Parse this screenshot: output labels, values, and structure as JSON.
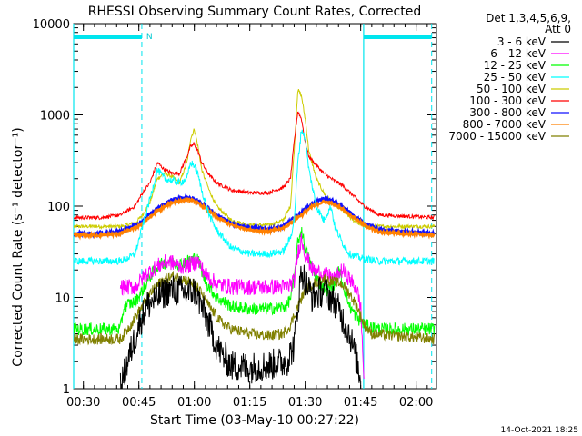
{
  "chart_data": {
    "type": "line",
    "title": "RHESSI Observing Summary Count Rates, Corrected",
    "xlabel": "Start Time (03-May-10 00:27:22)",
    "ylabel": "Corrected Count Rate (s⁻¹ detector⁻¹)",
    "yscale": "log",
    "ylim": [
      1,
      10000
    ],
    "xlim_minutes": [
      27.37,
      125.5
    ],
    "x_ticks": [
      "00:30",
      "00:45",
      "01:00",
      "01:15",
      "01:30",
      "01:45",
      "02:00"
    ],
    "x_tick_minutes": [
      30,
      45,
      60,
      75,
      90,
      105,
      120
    ],
    "y_ticks": [
      "1",
      "10",
      "100",
      "1000",
      "10000"
    ],
    "legend": {
      "header": [
        "Det 1,3,4,5,6,9,",
        "Att 0"
      ],
      "placement": "right"
    },
    "annotations": {
      "night_marker": "N",
      "cyan_bars": [
        [
          27.37,
          45.8
        ],
        [
          105.8,
          124.2
        ]
      ],
      "vertical_dashed_minutes": [
        45.8,
        124.2
      ],
      "vertical_solid_minutes": [
        27.37,
        105.8
      ]
    },
    "series": [
      {
        "name": "3 - 6 keV",
        "color": "#000000",
        "points": [
          [
            40,
            1
          ],
          [
            42,
            2
          ],
          [
            45,
            5
          ],
          [
            47,
            8
          ],
          [
            50,
            10
          ],
          [
            53,
            12
          ],
          [
            56,
            12
          ],
          [
            58,
            11
          ],
          [
            60,
            12
          ],
          [
            62,
            8
          ],
          [
            64,
            5
          ],
          [
            66,
            3
          ],
          [
            68,
            2.2
          ],
          [
            70,
            1.8
          ],
          [
            75,
            1.7
          ],
          [
            80,
            1.8
          ],
          [
            85,
            2
          ],
          [
            87,
            3
          ],
          [
            88,
            8
          ],
          [
            89,
            20
          ],
          [
            90,
            15
          ],
          [
            92,
            10
          ],
          [
            95,
            12
          ],
          [
            98,
            9
          ],
          [
            100,
            6
          ],
          [
            102,
            4
          ],
          [
            104,
            2
          ],
          [
            105,
            1.2
          ]
        ]
      },
      {
        "name": "6 - 12 keV",
        "color": "#ff00ff",
        "points": [
          [
            40,
            13
          ],
          [
            44,
            13
          ],
          [
            47,
            18
          ],
          [
            50,
            22
          ],
          [
            53,
            25
          ],
          [
            56,
            22
          ],
          [
            58,
            22
          ],
          [
            60,
            24
          ],
          [
            61,
            25
          ],
          [
            63,
            18
          ],
          [
            66,
            14
          ],
          [
            70,
            13
          ],
          [
            80,
            13
          ],
          [
            85,
            13
          ],
          [
            87,
            15
          ],
          [
            88,
            30
          ],
          [
            89,
            45
          ],
          [
            90,
            30
          ],
          [
            92,
            20
          ],
          [
            95,
            18
          ],
          [
            98,
            16
          ],
          [
            100,
            20
          ],
          [
            102,
            16
          ],
          [
            104,
            12
          ],
          [
            105,
            8
          ],
          [
            106,
            1
          ]
        ]
      },
      {
        "name": "12 - 25 keV",
        "color": "#00ff00",
        "points": [
          [
            27.37,
            4.5
          ],
          [
            35,
            4.5
          ],
          [
            40,
            4.5
          ],
          [
            41,
            8
          ],
          [
            44,
            9
          ],
          [
            46,
            12
          ],
          [
            48,
            17
          ],
          [
            50,
            22
          ],
          [
            53,
            25
          ],
          [
            56,
            23
          ],
          [
            58,
            25
          ],
          [
            60,
            27
          ],
          [
            61,
            26
          ],
          [
            63,
            15
          ],
          [
            66,
            10
          ],
          [
            70,
            8
          ],
          [
            75,
            7.5
          ],
          [
            80,
            7.5
          ],
          [
            85,
            8
          ],
          [
            86,
            10
          ],
          [
            87,
            15
          ],
          [
            88,
            40
          ],
          [
            89,
            55
          ],
          [
            90,
            35
          ],
          [
            92,
            20
          ],
          [
            94,
            14
          ],
          [
            96,
            12
          ],
          [
            98,
            14
          ],
          [
            99,
            20
          ],
          [
            100,
            15
          ],
          [
            102,
            8
          ],
          [
            104,
            6
          ],
          [
            106,
            5
          ],
          [
            110,
            4.5
          ],
          [
            125,
            4.5
          ]
        ]
      },
      {
        "name": "25 - 50 keV",
        "color": "#00ffff",
        "points": [
          [
            27.37,
            25
          ],
          [
            35,
            25
          ],
          [
            40,
            25
          ],
          [
            42,
            27
          ],
          [
            44,
            30
          ],
          [
            46,
            60
          ],
          [
            48,
            120
          ],
          [
            50,
            250
          ],
          [
            52,
            200
          ],
          [
            54,
            190
          ],
          [
            56,
            180
          ],
          [
            58,
            200
          ],
          [
            59,
            300
          ],
          [
            60,
            280
          ],
          [
            61,
            220
          ],
          [
            62,
            150
          ],
          [
            64,
            80
          ],
          [
            66,
            55
          ],
          [
            70,
            35
          ],
          [
            75,
            30
          ],
          [
            80,
            30
          ],
          [
            84,
            32
          ],
          [
            86,
            45
          ],
          [
            87,
            70
          ],
          [
            88,
            300
          ],
          [
            89,
            700
          ],
          [
            90,
            550
          ],
          [
            91,
            250
          ],
          [
            93,
            100
          ],
          [
            95,
            70
          ],
          [
            97,
            100
          ],
          [
            98,
            60
          ],
          [
            100,
            40
          ],
          [
            102,
            30
          ],
          [
            105,
            27
          ],
          [
            110,
            25
          ],
          [
            125,
            25
          ]
        ]
      },
      {
        "name": "50 - 100 keV",
        "color": "#cccc00",
        "points": [
          [
            27.37,
            60
          ],
          [
            35,
            60
          ],
          [
            40,
            60
          ],
          [
            44,
            65
          ],
          [
            46,
            80
          ],
          [
            48,
            110
          ],
          [
            50,
            200
          ],
          [
            52,
            230
          ],
          [
            54,
            210
          ],
          [
            56,
            180
          ],
          [
            58,
            300
          ],
          [
            59,
            550
          ],
          [
            60,
            700
          ],
          [
            61,
            450
          ],
          [
            62,
            250
          ],
          [
            64,
            150
          ],
          [
            66,
            100
          ],
          [
            70,
            70
          ],
          [
            75,
            62
          ],
          [
            80,
            62
          ],
          [
            84,
            70
          ],
          [
            86,
            100
          ],
          [
            87,
            400
          ],
          [
            88,
            1900
          ],
          [
            89,
            1600
          ],
          [
            90,
            900
          ],
          [
            91,
            400
          ],
          [
            93,
            200
          ],
          [
            95,
            140
          ],
          [
            97,
            110
          ],
          [
            100,
            90
          ],
          [
            103,
            70
          ],
          [
            106,
            60
          ],
          [
            110,
            60
          ],
          [
            125,
            60
          ]
        ]
      },
      {
        "name": "100 - 300 keV",
        "color": "#ff0000",
        "points": [
          [
            27.37,
            75
          ],
          [
            35,
            75
          ],
          [
            40,
            80
          ],
          [
            44,
            100
          ],
          [
            46,
            140
          ],
          [
            48,
            180
          ],
          [
            50,
            300
          ],
          [
            52,
            250
          ],
          [
            54,
            230
          ],
          [
            56,
            230
          ],
          [
            58,
            350
          ],
          [
            59,
            450
          ],
          [
            60,
            480
          ],
          [
            61,
            400
          ],
          [
            62,
            300
          ],
          [
            64,
            220
          ],
          [
            66,
            180
          ],
          [
            70,
            150
          ],
          [
            75,
            140
          ],
          [
            80,
            140
          ],
          [
            84,
            160
          ],
          [
            86,
            200
          ],
          [
            87,
            500
          ],
          [
            88,
            1100
          ],
          [
            89,
            900
          ],
          [
            90,
            500
          ],
          [
            91,
            350
          ],
          [
            93,
            280
          ],
          [
            95,
            230
          ],
          [
            97,
            200
          ],
          [
            100,
            170
          ],
          [
            103,
            130
          ],
          [
            106,
            100
          ],
          [
            110,
            80
          ],
          [
            125,
            75
          ]
        ]
      },
      {
        "name": "300 - 800 keV",
        "color": "#1010ff",
        "points": [
          [
            27.37,
            50
          ],
          [
            35,
            50
          ],
          [
            40,
            53
          ],
          [
            45,
            65
          ],
          [
            50,
            95
          ],
          [
            54,
            118
          ],
          [
            58,
            125
          ],
          [
            60,
            120
          ],
          [
            63,
            100
          ],
          [
            66,
            80
          ],
          [
            70,
            65
          ],
          [
            75,
            58
          ],
          [
            80,
            56
          ],
          [
            84,
            60
          ],
          [
            88,
            80
          ],
          [
            92,
            108
          ],
          [
            95,
            120
          ],
          [
            97,
            115
          ],
          [
            100,
            100
          ],
          [
            103,
            80
          ],
          [
            106,
            65
          ],
          [
            110,
            55
          ],
          [
            125,
            50
          ]
        ]
      },
      {
        "name": "800 - 7000 keV",
        "color": "#ff8000",
        "points": [
          [
            27.37,
            48
          ],
          [
            35,
            48
          ],
          [
            40,
            50
          ],
          [
            45,
            60
          ],
          [
            50,
            88
          ],
          [
            54,
            110
          ],
          [
            58,
            118
          ],
          [
            60,
            113
          ],
          [
            63,
            95
          ],
          [
            66,
            76
          ],
          [
            70,
            62
          ],
          [
            75,
            55
          ],
          [
            80,
            53
          ],
          [
            84,
            57
          ],
          [
            88,
            75
          ],
          [
            92,
            100
          ],
          [
            95,
            112
          ],
          [
            97,
            108
          ],
          [
            100,
            94
          ],
          [
            103,
            76
          ],
          [
            106,
            62
          ],
          [
            110,
            52
          ],
          [
            125,
            48
          ]
        ]
      },
      {
        "name": "7000 - 15000 keV",
        "color": "#808000",
        "points": [
          [
            27.37,
            3.5
          ],
          [
            35,
            3.5
          ],
          [
            40,
            3.5
          ],
          [
            42,
            4.5
          ],
          [
            45,
            7
          ],
          [
            48,
            11
          ],
          [
            51,
            15
          ],
          [
            54,
            17
          ],
          [
            57,
            16
          ],
          [
            60,
            14
          ],
          [
            62,
            11
          ],
          [
            64,
            8
          ],
          [
            67,
            5.5
          ],
          [
            70,
            4.5
          ],
          [
            75,
            4
          ],
          [
            80,
            3.8
          ],
          [
            84,
            4
          ],
          [
            86,
            5
          ],
          [
            88,
            8
          ],
          [
            90,
            12
          ],
          [
            92,
            14
          ],
          [
            95,
            16
          ],
          [
            97,
            15
          ],
          [
            100,
            14
          ],
          [
            102,
            11
          ],
          [
            104,
            8
          ],
          [
            106,
            5
          ],
          [
            108,
            4
          ],
          [
            125,
            3.5
          ]
        ]
      }
    ]
  },
  "footer": {
    "timestamp": "14-Oct-2021 18:25"
  }
}
